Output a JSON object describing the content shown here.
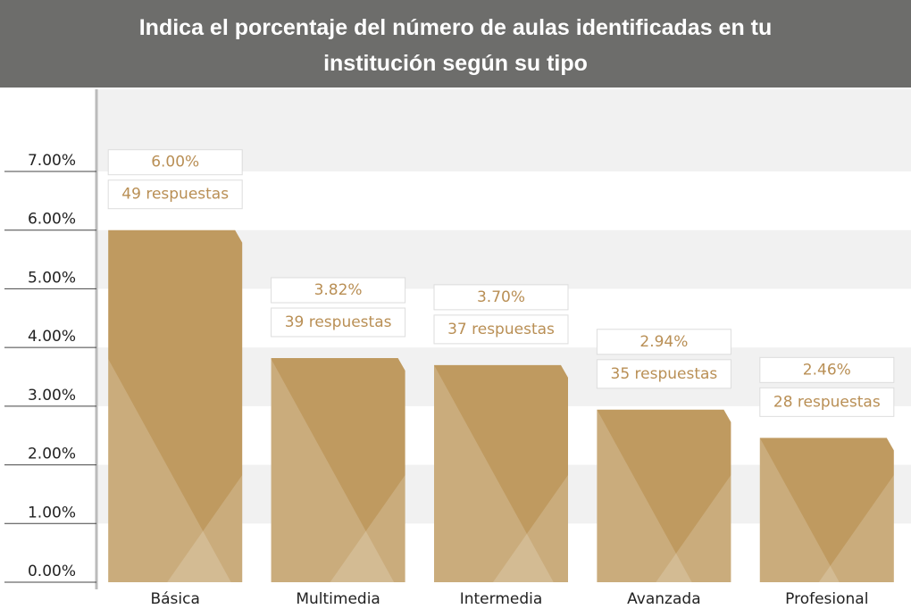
{
  "chart_data": {
    "type": "bar",
    "title": "Indica el porcentaje del número de aulas identificadas en tu institución según su tipo",
    "categories": [
      "Básica",
      "Multimedia",
      "Intermedia",
      "Avanzada",
      "Profesional"
    ],
    "values": [
      6.0,
      3.82,
      3.7,
      2.94,
      2.46
    ],
    "value_labels": [
      "6.00%",
      "3.82%",
      "3.70%",
      "2.94%",
      "2.46%"
    ],
    "response_labels": [
      "49 respuestas",
      "39 respuestas",
      "37 respuestas",
      "35 respuestas",
      "28 respuestas"
    ],
    "color": "#bf9a60",
    "ylim": [
      0,
      8.4
    ],
    "yticks": [
      {
        "value": 0,
        "label": "0.00%"
      },
      {
        "value": 1,
        "label": "1.00%"
      },
      {
        "value": 2,
        "label": "2.00%"
      },
      {
        "value": 3,
        "label": "3.00%"
      },
      {
        "value": 4,
        "label": "4.00%"
      },
      {
        "value": 5,
        "label": "5.00%"
      },
      {
        "value": 6,
        "label": "6.00%"
      },
      {
        "value": 7,
        "label": "7.00%"
      }
    ],
    "grid": true
  }
}
